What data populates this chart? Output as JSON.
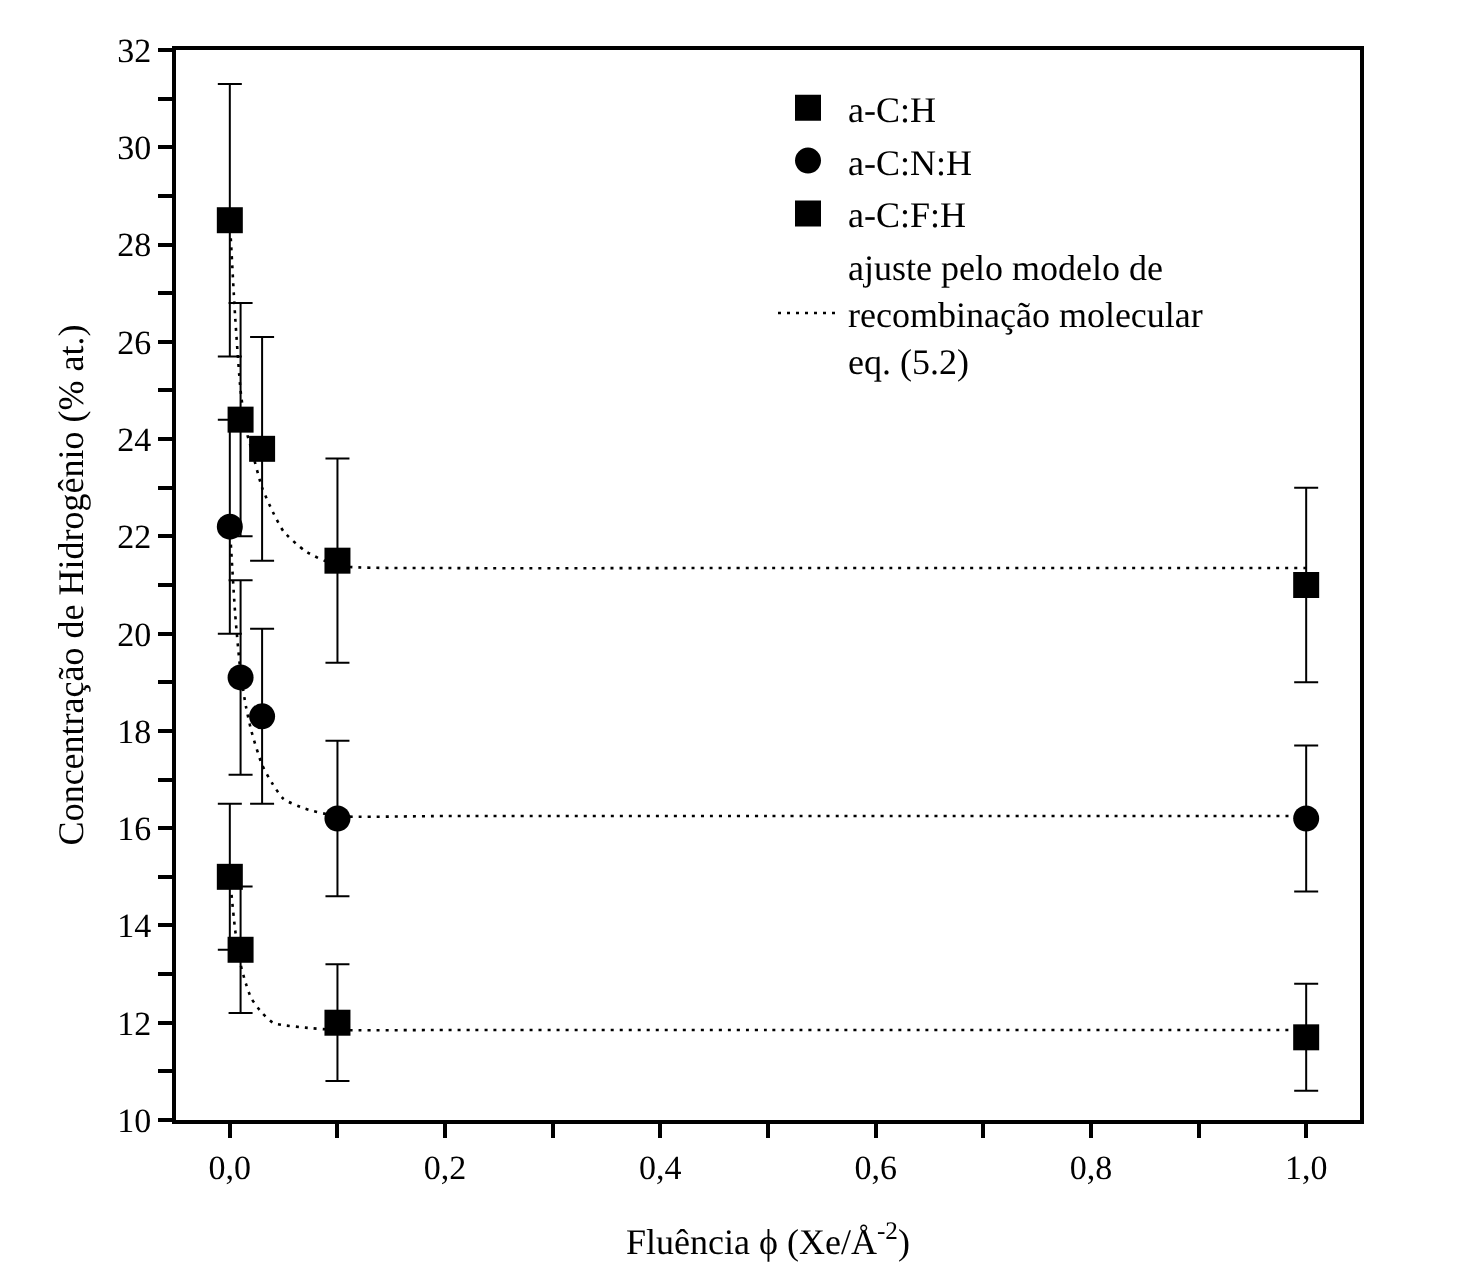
{
  "chart_data": {
    "type": "scatter",
    "xlabel": "Fluência ϕ (Xe/Å$^{-2}$)",
    "ylabel": "Concentração de Hidrogênio (% at.)",
    "xlim": [
      -0.05,
      1.05
    ],
    "xticks": [
      {
        "value": 0,
        "label": "0,0"
      },
      {
        "value": 0.1,
        "label": null
      },
      {
        "value": 0.2,
        "label": "0,2"
      },
      {
        "value": 0.3,
        "label": null
      },
      {
        "value": 0.4,
        "label": "0,4"
      },
      {
        "value": 0.5,
        "label": null
      },
      {
        "value": 0.6,
        "label": "0,6"
      },
      {
        "value": 0.7,
        "label": null
      },
      {
        "value": 0.8,
        "label": "0,8"
      },
      {
        "value": 0.9,
        "label": null
      },
      {
        "value": 1.0,
        "label": "1,0"
      }
    ],
    "ylim": [
      10,
      32
    ],
    "yticks": [
      10,
      {
        "value": 11,
        "label": null
      },
      12,
      {
        "value": 13,
        "label": null
      },
      14,
      {
        "value": 15,
        "label": null
      },
      16,
      {
        "value": 17,
        "label": null
      },
      18,
      {
        "value": 19,
        "label": null
      },
      20,
      {
        "value": 21,
        "label": null
      },
      22,
      {
        "value": 23,
        "label": null
      },
      24,
      {
        "value": 25,
        "label": null
      },
      26,
      {
        "value": 27,
        "label": null
      },
      28,
      {
        "value": 29,
        "label": null
      },
      30,
      {
        "value": 31,
        "label": null
      },
      32
    ],
    "grid": false,
    "legend": "top right",
    "series": [
      {
        "name": "a-C:H",
        "marker": "square",
        "color": "#000000",
        "x": [
          0,
          0.01,
          0.03,
          0.1,
          1.0
        ],
        "values": [
          28.5,
          24.4,
          23.8,
          21.5,
          21.0
        ],
        "errors": [
          2.8,
          2.4,
          2.3,
          2.1,
          2.0
        ]
      },
      {
        "name": "a-C:N:H",
        "marker": "circle",
        "color": "#000000",
        "x": [
          0,
          0.01,
          0.03,
          0.1,
          1.0
        ],
        "values": [
          22.2,
          19.1,
          18.3,
          16.2,
          16.2
        ],
        "errors": [
          2.2,
          2.0,
          1.8,
          1.6,
          1.5
        ]
      },
      {
        "name": "a-C:F:H",
        "marker": "square",
        "color": "#000000",
        "x": [
          0,
          0.01,
          0.1,
          1.0
        ],
        "values": [
          15.0,
          13.5,
          12.0,
          11.7
        ],
        "errors": [
          1.5,
          1.3,
          1.2,
          1.1
        ]
      },
      {
        "name": "ajuste pelo modelo de recombinação molecular eq. (5.2)",
        "type": "line",
        "line_style": "dotted",
        "color": "#000000",
        "x": [
          0,
          0.005,
          0.01,
          0.015,
          0.02,
          0.03,
          0.04,
          0.05,
          0.07,
          0.1,
          0.2,
          0.5,
          1.0
        ],
        "values": [
          28.5,
          26.5,
          25.0,
          24.2,
          23.8,
          23.0,
          22.5,
          22.1,
          21.7,
          21.4,
          21.35,
          21.35,
          21.35
        ]
      },
      {
        "type": "line",
        "line_style": "dotted",
        "color": "#000000",
        "x": [
          0,
          0.005,
          0.01,
          0.015,
          0.02,
          0.03,
          0.04,
          0.05,
          0.07,
          0.1,
          0.2,
          0.5,
          1.0
        ],
        "values": [
          22.2,
          20.4,
          19.2,
          18.5,
          18.0,
          17.3,
          16.9,
          16.6,
          16.4,
          16.25,
          16.25,
          16.25,
          16.25
        ]
      },
      {
        "type": "line",
        "line_style": "dotted",
        "color": "#000000",
        "x": [
          0,
          0.005,
          0.01,
          0.015,
          0.02,
          0.03,
          0.04,
          0.05,
          0.07,
          0.1,
          0.2,
          0.5,
          1.0
        ],
        "values": [
          15.0,
          13.9,
          13.2,
          12.8,
          12.5,
          12.2,
          12.0,
          11.95,
          11.9,
          11.85,
          11.85,
          11.85,
          11.85
        ]
      }
    ]
  }
}
